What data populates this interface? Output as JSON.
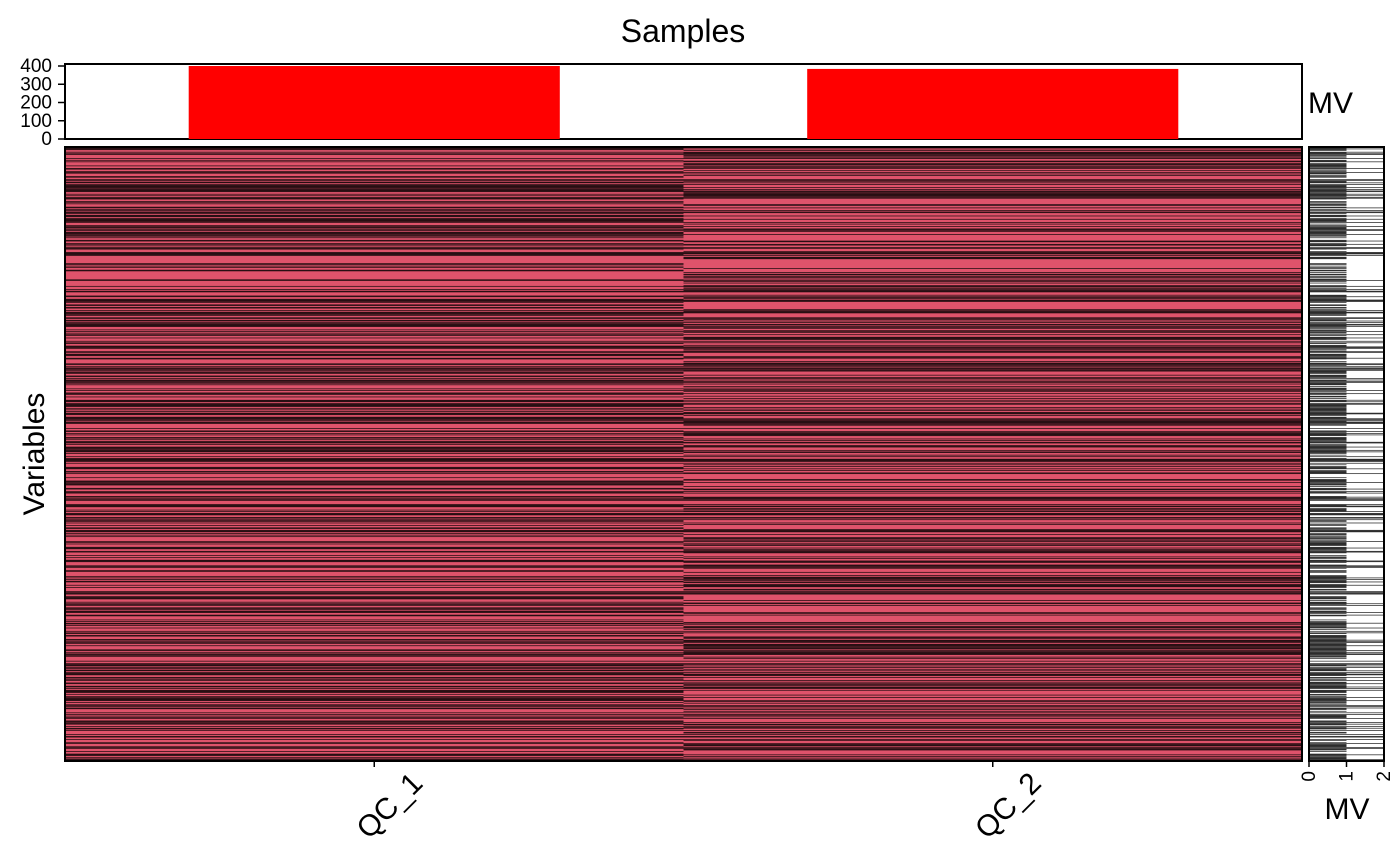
{
  "chart_data": [
    {
      "type": "bar",
      "title": "Samples",
      "ylabel": "MV",
      "categories": [
        "QC_1",
        "QC_2"
      ],
      "values": [
        400,
        384
      ],
      "ylim": [
        0,
        400
      ],
      "yticks": [
        "0",
        "100",
        "200",
        "300",
        "400"
      ],
      "bar_color": "#FF0000"
    },
    {
      "type": "heatmap",
      "ylabel": "Variables",
      "columns": [
        "QC_1",
        "QC_2"
      ],
      "n_rows": 760,
      "present_color": "#DF536B",
      "missing_color": "#000000",
      "missing_per_column": [
        400,
        384
      ]
    },
    {
      "type": "bar",
      "orientation": "horizontal",
      "xlabel": "MV",
      "xticks": [
        "0",
        "1",
        "2"
      ],
      "xlim": [
        0,
        2
      ],
      "bar_color": "#000000"
    }
  ]
}
